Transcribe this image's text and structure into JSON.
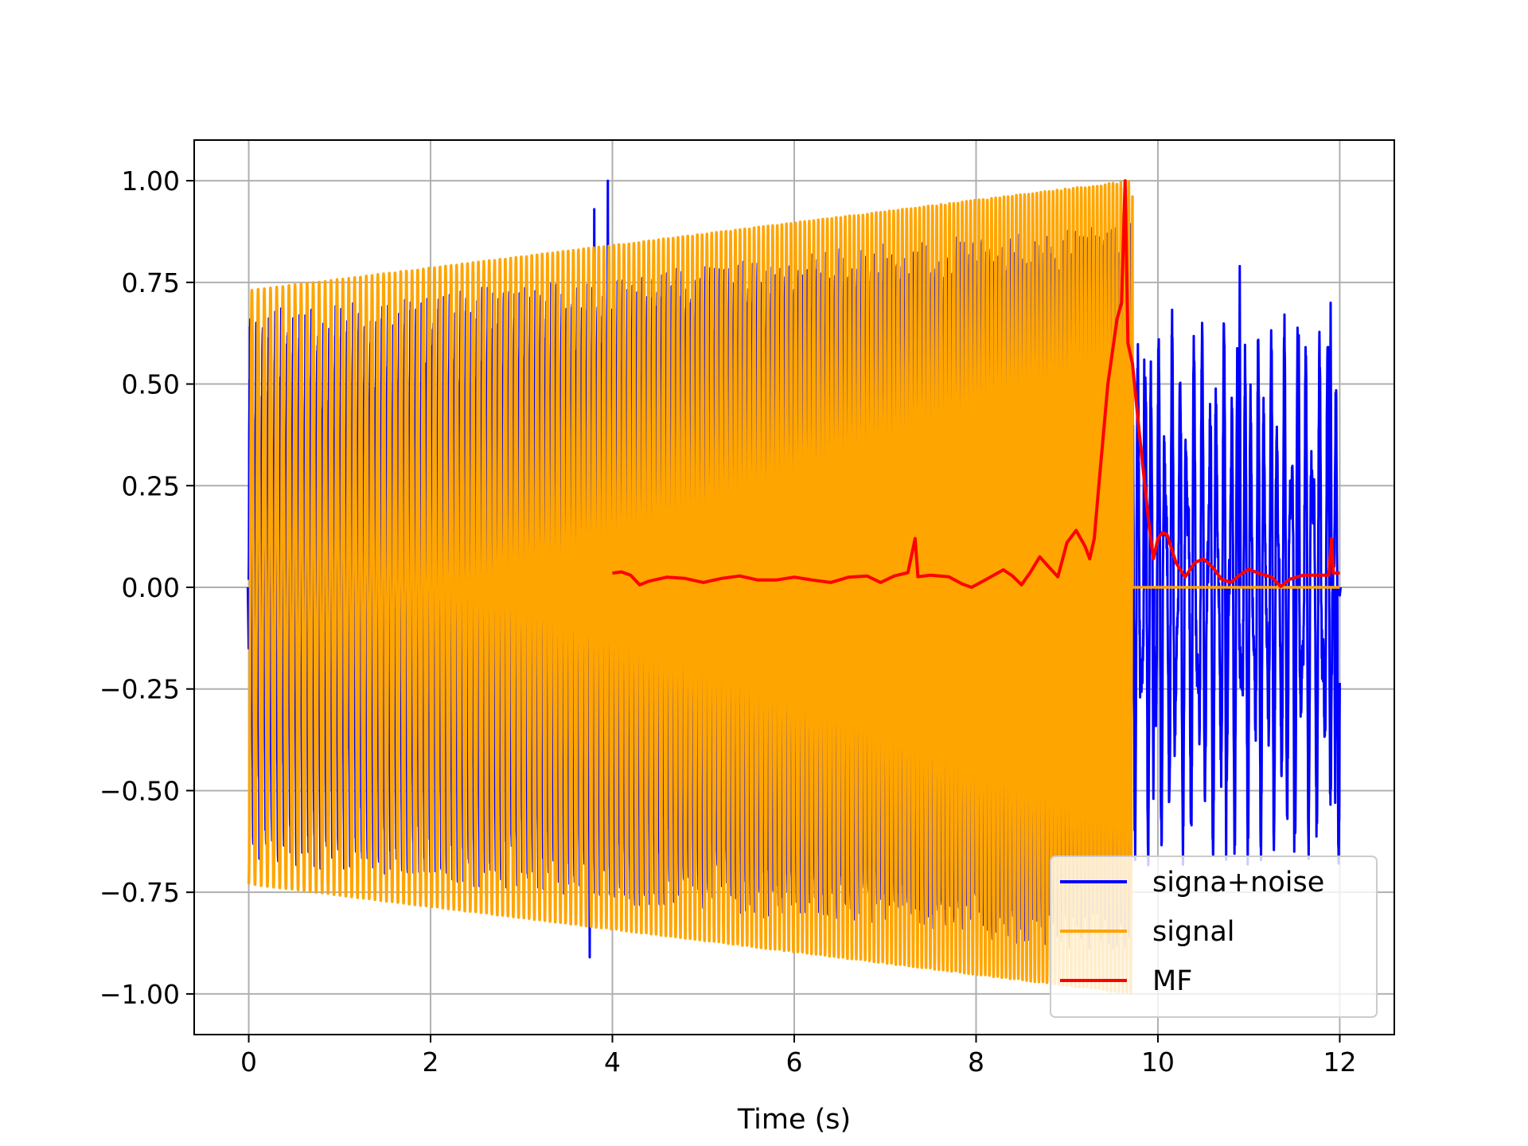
{
  "chart_data": {
    "type": "line",
    "title": "",
    "xlabel": "Time (s)",
    "ylabel": "",
    "xlim": [
      -0.6,
      12.6
    ],
    "ylim": [
      -1.1,
      1.1
    ],
    "grid": true,
    "legend_position": "lower-right",
    "x_ticks": [
      0,
      2,
      4,
      6,
      8,
      10,
      12
    ],
    "x_tick_labels": [
      "0",
      "2",
      "4",
      "6",
      "8",
      "10",
      "12"
    ],
    "y_ticks": [
      1.0,
      0.75,
      0.5,
      0.25,
      0.0,
      -0.25,
      -0.5,
      -0.75,
      -1.0
    ],
    "y_tick_labels": [
      "1.00",
      "0.75",
      "0.50",
      "0.25",
      "0.00",
      "−0.25",
      "−0.50",
      "−0.75",
      "−1.00"
    ],
    "series": [
      {
        "name": "signa+noise",
        "color": "#0000ff",
        "description_of_shape": "chirp plus noise, visible beyond signal envelope; spikes up to about 1.0 near t=3.95",
        "peaks": [
          {
            "x": 0.0,
            "y": -0.15
          },
          {
            "x": 1.95,
            "y": 0.55
          },
          {
            "x": 3.75,
            "y": -0.91
          },
          {
            "x": 3.8,
            "y": 0.93
          },
          {
            "x": 3.95,
            "y": 1.0
          },
          {
            "x": 6.9,
            "y": -0.69
          },
          {
            "x": 7.65,
            "y": -0.79
          },
          {
            "x": 9.85,
            "y": 0.56
          },
          {
            "x": 9.95,
            "y": -0.52
          },
          {
            "x": 10.9,
            "y": 0.79
          },
          {
            "x": 10.75,
            "y": -0.67
          },
          {
            "x": 11.5,
            "y": -0.65
          },
          {
            "x": 11.55,
            "y": 0.62
          },
          {
            "x": 11.9,
            "y": 0.7
          },
          {
            "x": 11.95,
            "y": -0.53
          },
          {
            "x": 12.0,
            "y": -0.02
          }
        ]
      },
      {
        "name": "signal",
        "color": "#ffa500",
        "description_of_shape": "chirp from t=0 to t=9.72, amplitude rising from about 0.73 to 1.0, zero afterwards",
        "t_start": 0.0,
        "t_end": 9.72,
        "amplitude_start": 0.73,
        "amplitude_end": 1.0,
        "value_after_end": 0.0
      },
      {
        "name": "MF",
        "color": "#ff0000",
        "points": [
          [
            4.0,
            0.035
          ],
          [
            4.1,
            0.038
          ],
          [
            4.2,
            0.03
          ],
          [
            4.3,
            0.006
          ],
          [
            4.4,
            0.015
          ],
          [
            4.6,
            0.025
          ],
          [
            4.8,
            0.022
          ],
          [
            5.0,
            0.012
          ],
          [
            5.2,
            0.022
          ],
          [
            5.4,
            0.028
          ],
          [
            5.6,
            0.018
          ],
          [
            5.8,
            0.018
          ],
          [
            6.0,
            0.025
          ],
          [
            6.2,
            0.018
          ],
          [
            6.4,
            0.012
          ],
          [
            6.6,
            0.025
          ],
          [
            6.8,
            0.028
          ],
          [
            6.95,
            0.012
          ],
          [
            7.1,
            0.028
          ],
          [
            7.25,
            0.036
          ],
          [
            7.33,
            0.12
          ],
          [
            7.36,
            0.026
          ],
          [
            7.5,
            0.03
          ],
          [
            7.7,
            0.026
          ],
          [
            7.85,
            0.008
          ],
          [
            7.95,
            0.0
          ],
          [
            8.1,
            0.018
          ],
          [
            8.3,
            0.043
          ],
          [
            8.4,
            0.028
          ],
          [
            8.5,
            0.006
          ],
          [
            8.6,
            0.038
          ],
          [
            8.7,
            0.075
          ],
          [
            8.8,
            0.05
          ],
          [
            8.9,
            0.026
          ],
          [
            9.0,
            0.11
          ],
          [
            9.1,
            0.14
          ],
          [
            9.2,
            0.1
          ],
          [
            9.25,
            0.07
          ],
          [
            9.3,
            0.12
          ],
          [
            9.35,
            0.25
          ],
          [
            9.45,
            0.5
          ],
          [
            9.55,
            0.66
          ],
          [
            9.6,
            0.7
          ],
          [
            9.64,
            1.0
          ],
          [
            9.67,
            0.6
          ],
          [
            9.72,
            0.55
          ],
          [
            9.8,
            0.37
          ],
          [
            9.9,
            0.16
          ],
          [
            9.95,
            0.07
          ],
          [
            10.0,
            0.12
          ],
          [
            10.05,
            0.135
          ],
          [
            10.1,
            0.13
          ],
          [
            10.2,
            0.06
          ],
          [
            10.3,
            0.025
          ],
          [
            10.4,
            0.06
          ],
          [
            10.5,
            0.07
          ],
          [
            10.6,
            0.05
          ],
          [
            10.7,
            0.02
          ],
          [
            10.8,
            0.012
          ],
          [
            10.9,
            0.03
          ],
          [
            11.0,
            0.045
          ],
          [
            11.1,
            0.035
          ],
          [
            11.25,
            0.025
          ],
          [
            11.35,
            0.002
          ],
          [
            11.45,
            0.02
          ],
          [
            11.6,
            0.03
          ],
          [
            11.75,
            0.03
          ],
          [
            11.88,
            0.03
          ],
          [
            11.91,
            0.12
          ],
          [
            11.93,
            0.035
          ],
          [
            12.0,
            0.035
          ]
        ]
      }
    ]
  }
}
